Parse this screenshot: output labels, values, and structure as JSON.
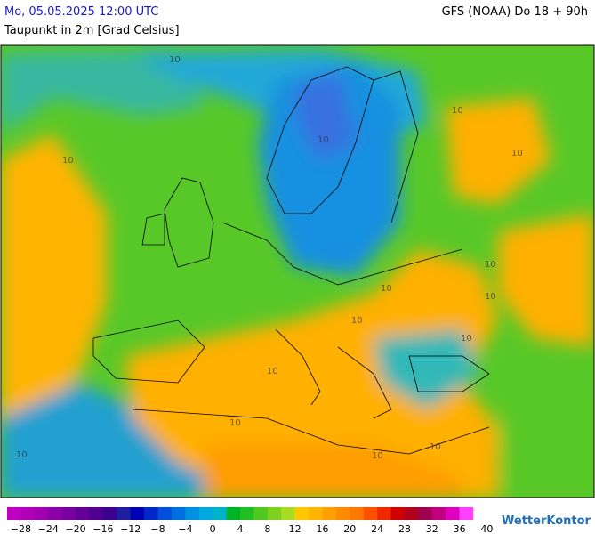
{
  "header": {
    "datetime": "Mo, 05.05.2025 12:00 UTC",
    "model": "GFS (NOAA) Do 18 + 90h",
    "subtitle": "Taupunkt in 2m [Grad Celsius]"
  },
  "map": {
    "contour_labels": [
      "10",
      "10",
      "10",
      "10",
      "10",
      "10",
      "10",
      "10",
      "10",
      "10",
      "10",
      "10",
      "10",
      "10",
      "10"
    ]
  },
  "colorbar": {
    "colors": [
      "#c000c0",
      "#b000b8",
      "#a000b0",
      "#8c00a8",
      "#7800a0",
      "#640098",
      "#500090",
      "#3c0090",
      "#1e1ea0",
      "#0000b4",
      "#0028c8",
      "#0050dc",
      "#0070e0",
      "#0090e0",
      "#00a8e0",
      "#00b4c8",
      "#00b428",
      "#20c020",
      "#50c820",
      "#80d020",
      "#a8dc20",
      "#ffc800",
      "#ffb400",
      "#ffa000",
      "#ff8c00",
      "#ff7800",
      "#ff5000",
      "#f02800",
      "#d00000",
      "#b00020",
      "#a00050",
      "#c00080",
      "#e000c0",
      "#ff40ff"
    ],
    "labels": [
      "−28",
      "−24",
      "−20",
      "−16",
      "−12",
      "−8",
      "−4",
      "0",
      "4",
      "8",
      "12",
      "16",
      "20",
      "24",
      "28",
      "32",
      "36",
      "40"
    ]
  },
  "logo": "WetterKontor"
}
